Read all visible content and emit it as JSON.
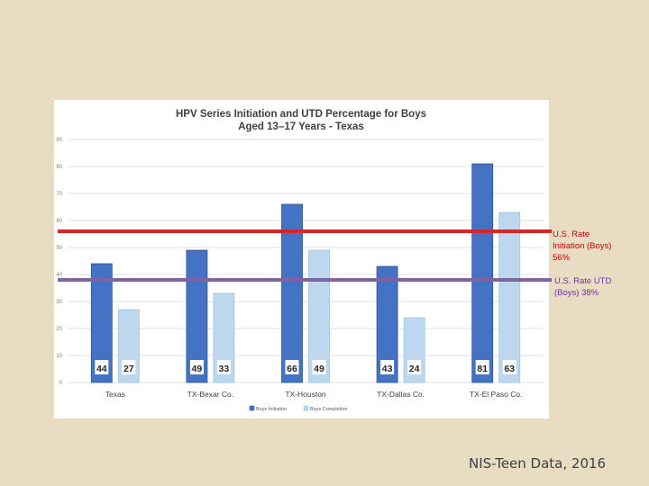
{
  "slide": {
    "source": "NIS-Teen Data, 2016",
    "background": "#e8dcc2"
  },
  "chart_data": {
    "type": "bar",
    "title": "HPV Series Initiation and UTD Percentage for Boys",
    "subtitle": "Aged 13–17 Years - Texas",
    "categories": [
      "Texas",
      "TX-Bexar Co.",
      "TX-Houston",
      "TX-Dallas Co.",
      "TX-El Paso Co."
    ],
    "series": [
      {
        "name": "Boys Initiation",
        "values": [
          44,
          49,
          66,
          43,
          81
        ],
        "color": "#4472c4"
      },
      {
        "name": "Boys Completion",
        "values": [
          27,
          33,
          49,
          24,
          63
        ],
        "color": "#bdd7ee"
      }
    ],
    "ylim": [
      0,
      90
    ],
    "yticks": [
      "0",
      "10",
      "20",
      "30",
      "40",
      "50",
      "60",
      "70",
      "80",
      "90"
    ],
    "grid": true,
    "legend_position": "bottom",
    "reference_lines": [
      {
        "value": 56,
        "label_lines": [
          "U.S. Rate",
          "Initiation (Boys)",
          "56%"
        ],
        "color": "#d92626",
        "text_color": "#c00000"
      },
      {
        "value": 38,
        "label_lines": [
          "U.S. Rate UTD",
          "(Boys) 38%"
        ],
        "color": "#8064a2",
        "text_color": "#7030a0"
      }
    ]
  }
}
